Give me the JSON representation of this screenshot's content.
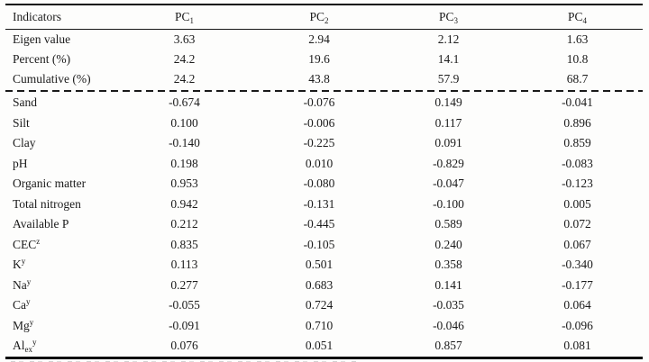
{
  "colors": {
    "text": "#1b1b1b",
    "rule": "#0d0d0d",
    "background": "#fdfdfc"
  },
  "table": {
    "header": {
      "indicator_label": "Indicators",
      "columns": [
        {
          "label": "PC",
          "sub": "1"
        },
        {
          "label": "PC",
          "sub": "2"
        },
        {
          "label": "PC",
          "sub": "3"
        },
        {
          "label": "PC",
          "sub": "4"
        }
      ]
    },
    "summary_rows": [
      {
        "label": "Eigen value",
        "sub": "",
        "sup": "",
        "values": [
          "3.63",
          "2.94",
          "2.12",
          "1.63"
        ]
      },
      {
        "label": "Percent (%)",
        "sub": "",
        "sup": "",
        "values": [
          "24.2",
          "19.6",
          "14.1",
          "10.8"
        ]
      },
      {
        "label": "Cumulative (%)",
        "sub": "",
        "sup": "",
        "values": [
          "24.2",
          "43.8",
          "57.9",
          "68.7"
        ]
      }
    ],
    "indicator_rows": [
      {
        "label": "Sand",
        "sub": "",
        "sup": "",
        "values": [
          "-0.674",
          "-0.076",
          "0.149",
          "-0.041"
        ]
      },
      {
        "label": "Silt",
        "sub": "",
        "sup": "",
        "values": [
          "0.100",
          "-0.006",
          "0.117",
          "0.896"
        ]
      },
      {
        "label": "Clay",
        "sub": "",
        "sup": "",
        "values": [
          "-0.140",
          "-0.225",
          "0.091",
          "0.859"
        ]
      },
      {
        "label": "pH",
        "sub": "",
        "sup": "",
        "values": [
          "0.198",
          "0.010",
          "-0.829",
          "-0.083"
        ]
      },
      {
        "label": "Organic matter",
        "sub": "",
        "sup": "",
        "values": [
          "0.953",
          "-0.080",
          "-0.047",
          "-0.123"
        ]
      },
      {
        "label": "Total nitrogen",
        "sub": "",
        "sup": "",
        "values": [
          "0.942",
          "-0.131",
          "-0.100",
          "0.005"
        ]
      },
      {
        "label": "Available P",
        "sub": "",
        "sup": "",
        "values": [
          "0.212",
          "-0.445",
          "0.589",
          "0.072"
        ]
      },
      {
        "label": "CEC",
        "sub": "",
        "sup": "z",
        "values": [
          "0.835",
          "-0.105",
          "0.240",
          "0.067"
        ]
      },
      {
        "label": "K",
        "sub": "",
        "sup": "y",
        "values": [
          "0.113",
          "0.501",
          "0.358",
          "-0.340"
        ]
      },
      {
        "label": "Na",
        "sub": "",
        "sup": "y",
        "values": [
          "0.277",
          "0.683",
          "0.141",
          "-0.177"
        ]
      },
      {
        "label": "Ca",
        "sub": "",
        "sup": "y",
        "values": [
          "-0.055",
          "0.724",
          "-0.035",
          "0.064"
        ]
      },
      {
        "label": "Mg",
        "sub": "",
        "sup": "y",
        "values": [
          "-0.091",
          "0.710",
          "-0.046",
          "-0.096"
        ]
      },
      {
        "label": "Al",
        "sub": "ex",
        "sup": "y",
        "values": [
          "0.076",
          "0.051",
          "0.857",
          "0.081"
        ]
      }
    ]
  }
}
